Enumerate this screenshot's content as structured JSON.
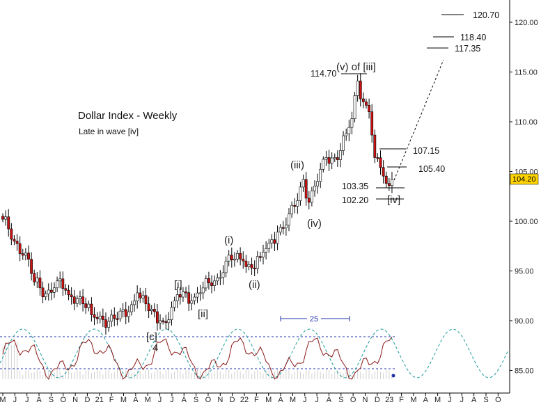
{
  "chart_data": {
    "type": "candlestick",
    "title": "Dollar Index - Weekly",
    "subtitle": "Late in wave [iv]",
    "last_price": "104.20",
    "colors": {
      "down": "#cc1111",
      "up": "#ffffff",
      "wick": "#000000",
      "osc": "#8b1a1a",
      "cycle": "#1a9a9a",
      "band": "#2233aa",
      "badge": "#ffd400"
    },
    "y_axis": {
      "range": [
        83.0,
        122.0
      ],
      "ticks": [
        "85.00",
        "90.00",
        "95.00",
        "100.00",
        "105.00",
        "110.00",
        "115.00",
        "120.00"
      ]
    },
    "x_axis": {
      "ticks": [
        "M",
        "J",
        "J",
        "A",
        "S",
        "O",
        "N",
        "D",
        "21",
        "F",
        "M",
        "A",
        "M",
        "J",
        "J",
        "A",
        "S",
        "O",
        "N",
        "D",
        "22",
        "F",
        "M",
        "A",
        "M",
        "J",
        "J",
        "A",
        "S",
        "O",
        "N",
        "D",
        "23",
        "F",
        "M",
        "A",
        "M",
        "J",
        "J",
        "A",
        "S",
        "O"
      ]
    },
    "anchors": [
      {
        "w": 0,
        "v": 100.2
      },
      {
        "w": 4,
        "v": 98.0
      },
      {
        "w": 8,
        "v": 96.8
      },
      {
        "w": 11,
        "v": 93.9
      },
      {
        "w": 15,
        "v": 92.7
      },
      {
        "w": 19,
        "v": 94.0
      },
      {
        "w": 23,
        "v": 92.6
      },
      {
        "w": 27,
        "v": 92.4
      },
      {
        "w": 31,
        "v": 90.6
      },
      {
        "w": 35,
        "v": 90.1
      },
      {
        "w": 40,
        "v": 90.2
      },
      {
        "w": 44,
        "v": 90.9
      },
      {
        "w": 47,
        "v": 92.8
      },
      {
        "w": 51,
        "v": 91.0
      },
      {
        "w": 55,
        "v": 90.0
      },
      {
        "w": 57,
        "v": 89.8
      },
      {
        "w": 60,
        "v": 92.0
      },
      {
        "w": 63,
        "v": 92.9
      },
      {
        "w": 66,
        "v": 92.0
      },
      {
        "w": 69,
        "v": 92.8
      },
      {
        "w": 72,
        "v": 93.8
      },
      {
        "w": 75,
        "v": 94.3
      },
      {
        "w": 78,
        "v": 96.0
      },
      {
        "w": 81,
        "v": 96.2
      },
      {
        "w": 84,
        "v": 96.0
      },
      {
        "w": 87,
        "v": 95.3
      },
      {
        "w": 90,
        "v": 96.4
      },
      {
        "w": 93,
        "v": 97.8
      },
      {
        "w": 96,
        "v": 98.9
      },
      {
        "w": 99,
        "v": 99.6
      },
      {
        "w": 102,
        "v": 101.5
      },
      {
        "w": 105,
        "v": 104.2
      },
      {
        "w": 107,
        "v": 101.9
      },
      {
        "w": 110,
        "v": 104.0
      },
      {
        "w": 113,
        "v": 106.4
      },
      {
        "w": 116,
        "v": 106.4
      },
      {
        "w": 118,
        "v": 107.1
      },
      {
        "w": 120,
        "v": 108.8
      },
      {
        "w": 122,
        "v": 110.3
      },
      {
        "w": 124,
        "v": 114.1
      },
      {
        "w": 126,
        "v": 112.0
      },
      {
        "w": 128,
        "v": 111.0
      },
      {
        "w": 130,
        "v": 106.4
      },
      {
        "w": 132,
        "v": 105.4
      },
      {
        "w": 134,
        "v": 103.8
      },
      {
        "w": 136,
        "v": 104.2
      }
    ],
    "wave_labels": [
      "(i)",
      "(ii)",
      "(iii)",
      "(iv)",
      "(v) of [iii]",
      "[i]",
      "[ii]",
      "[c]",
      "4",
      "[iv]"
    ],
    "price_levels": [
      "120.70",
      "118.40",
      "117.35",
      "114.70",
      "107.15",
      "105.40",
      "103.35",
      "102.20"
    ],
    "cycle_length": "25"
  }
}
